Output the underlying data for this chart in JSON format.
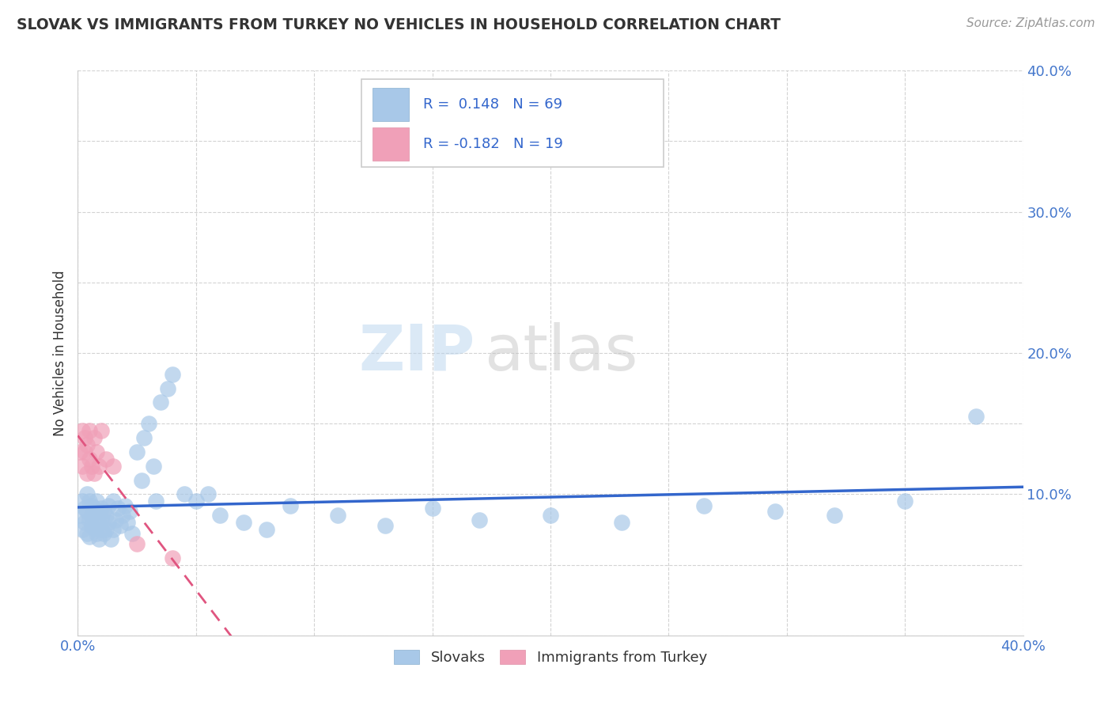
{
  "title": "SLOVAK VS IMMIGRANTS FROM TURKEY NO VEHICLES IN HOUSEHOLD CORRELATION CHART",
  "source_text": "Source: ZipAtlas.com",
  "ylabel": "No Vehicles in Household",
  "xlim": [
    0.0,
    0.4
  ],
  "ylim": [
    0.0,
    0.4
  ],
  "grid_color": "#c8c8c8",
  "background_color": "#ffffff",
  "watermark_zip": "ZIP",
  "watermark_atlas": "atlas",
  "legend_R_slovak": "0.148",
  "legend_N_slovak": "69",
  "legend_R_turkey": "-0.182",
  "legend_N_turkey": "19",
  "slovak_color": "#a8c8e8",
  "turkey_color": "#f0a0b8",
  "slovak_line_color": "#3366cc",
  "turkey_line_color": "#e05580",
  "slovak_x": [
    0.001,
    0.002,
    0.002,
    0.003,
    0.003,
    0.004,
    0.004,
    0.004,
    0.005,
    0.005,
    0.005,
    0.006,
    0.006,
    0.006,
    0.007,
    0.007,
    0.007,
    0.008,
    0.008,
    0.008,
    0.009,
    0.009,
    0.01,
    0.01,
    0.01,
    0.011,
    0.011,
    0.012,
    0.012,
    0.013,
    0.013,
    0.014,
    0.015,
    0.015,
    0.016,
    0.017,
    0.018,
    0.019,
    0.02,
    0.021,
    0.022,
    0.023,
    0.025,
    0.027,
    0.028,
    0.03,
    0.032,
    0.033,
    0.035,
    0.038,
    0.04,
    0.045,
    0.05,
    0.055,
    0.06,
    0.07,
    0.08,
    0.09,
    0.11,
    0.13,
    0.15,
    0.17,
    0.2,
    0.23,
    0.265,
    0.295,
    0.32,
    0.35,
    0.38
  ],
  "slovak_y": [
    0.085,
    0.095,
    0.075,
    0.09,
    0.08,
    0.088,
    0.072,
    0.1,
    0.095,
    0.082,
    0.07,
    0.092,
    0.085,
    0.078,
    0.09,
    0.083,
    0.076,
    0.088,
    0.072,
    0.095,
    0.08,
    0.068,
    0.09,
    0.083,
    0.075,
    0.088,
    0.072,
    0.085,
    0.075,
    0.092,
    0.08,
    0.068,
    0.095,
    0.075,
    0.082,
    0.09,
    0.078,
    0.085,
    0.092,
    0.08,
    0.088,
    0.072,
    0.13,
    0.11,
    0.14,
    0.15,
    0.12,
    0.095,
    0.165,
    0.175,
    0.185,
    0.1,
    0.095,
    0.1,
    0.085,
    0.08,
    0.075,
    0.092,
    0.085,
    0.078,
    0.09,
    0.082,
    0.085,
    0.08,
    0.092,
    0.088,
    0.085,
    0.095,
    0.155
  ],
  "turkey_x": [
    0.001,
    0.002,
    0.002,
    0.003,
    0.003,
    0.004,
    0.004,
    0.005,
    0.005,
    0.006,
    0.007,
    0.007,
    0.008,
    0.009,
    0.01,
    0.012,
    0.015,
    0.025,
    0.04
  ],
  "turkey_y": [
    0.13,
    0.145,
    0.12,
    0.14,
    0.13,
    0.135,
    0.115,
    0.145,
    0.125,
    0.12,
    0.14,
    0.115,
    0.13,
    0.12,
    0.145,
    0.125,
    0.12,
    0.065,
    0.055
  ]
}
